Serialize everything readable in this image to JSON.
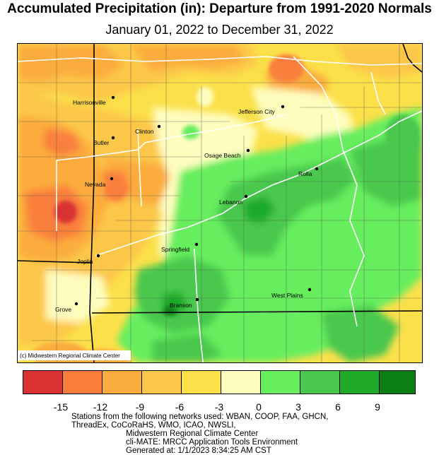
{
  "title": "Accumulated Precipitation (in): Departure from 1991-2020 Normals",
  "subtitle": "January 01, 2022 to December 31, 2022",
  "map": {
    "credit": "(c) Midwestern Regional Climate Center",
    "cities": [
      {
        "name": "Harrisonville"
      },
      {
        "name": "Jefferson City"
      },
      {
        "name": "Clinton"
      },
      {
        "name": "Butler"
      },
      {
        "name": "Osage Beach"
      },
      {
        "name": "Rolla"
      },
      {
        "name": "Nevada"
      },
      {
        "name": "Lebanon"
      },
      {
        "name": "Springfield"
      },
      {
        "name": "Joplin"
      },
      {
        "name": "West Plains"
      },
      {
        "name": "Branson"
      },
      {
        "name": "Grove"
      }
    ]
  },
  "legend": {
    "colors": [
      "#d93232",
      "#fa7f3c",
      "#fbac3e",
      "#fcc74a",
      "#fbe04a",
      "#fefdbe",
      "#66ee5e",
      "#49c84d",
      "#1faa2a",
      "#0b7f13"
    ],
    "ticks": [
      "-15",
      "-12",
      "-9",
      "-6",
      "-3",
      "0",
      "3",
      "6",
      "9"
    ]
  },
  "footer": {
    "line1": "Stations from the following networks used: WBAN, COOP, FAA, GHCN,",
    "line2": "ThreadEx, CoCoRaHS, WMO, ICAO, NWSLI,",
    "line3": "Midwestern Regional Climate Center",
    "line4": "cli-MATE: MRCC Application Tools Environment",
    "line5": "Generated at: 1/1/2023 8:34:25 AM CST"
  }
}
